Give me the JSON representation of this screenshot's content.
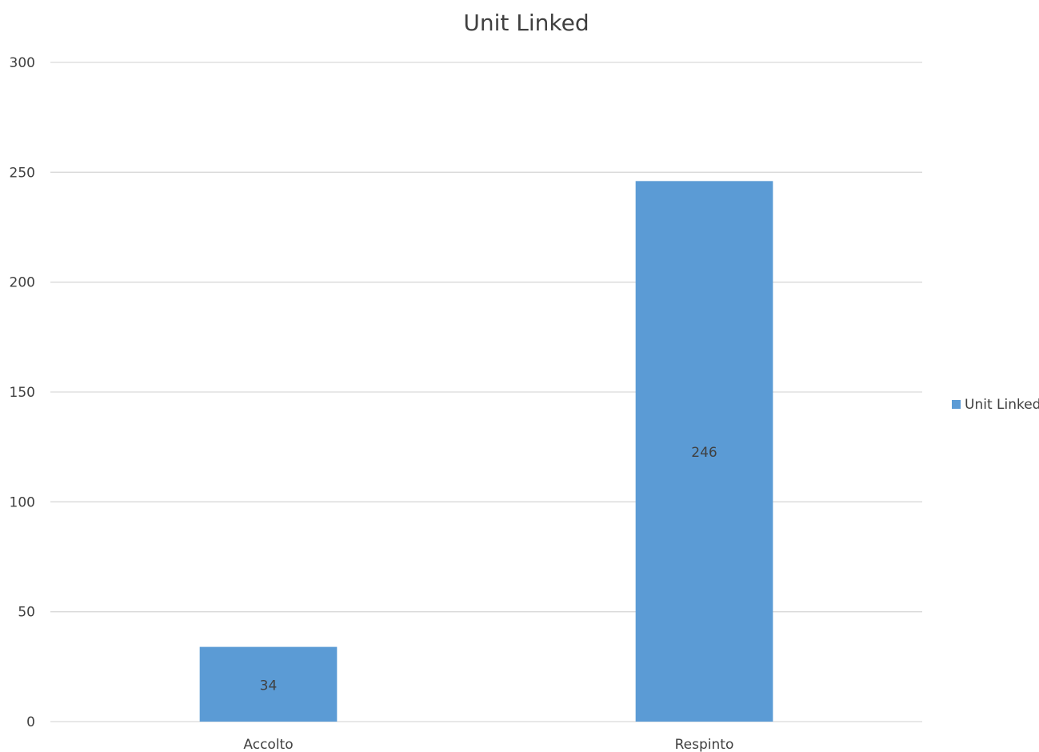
{
  "chart_data": {
    "type": "bar",
    "title": "Unit Linked",
    "categories": [
      "Accolto",
      "Respinto"
    ],
    "series": [
      {
        "name": "Unit Linked",
        "values": [
          34,
          246
        ],
        "color": "#5b9bd5"
      }
    ],
    "ylim": [
      0,
      300
    ],
    "yticks": [
      0,
      50,
      100,
      150,
      200,
      250,
      300
    ],
    "grid": true,
    "legend_position": "right",
    "data_labels": true,
    "xlabel": "",
    "ylabel": ""
  }
}
